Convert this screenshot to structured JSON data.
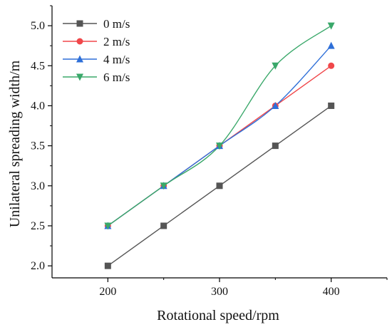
{
  "chart_data": {
    "type": "line",
    "title": "",
    "xlabel": "Rotational speed/rpm",
    "ylabel": "Unilateral spreading width/m",
    "x": [
      200,
      250,
      300,
      350,
      400
    ],
    "xlim": [
      150,
      450
    ],
    "ylim": [
      1.85,
      5.25
    ],
    "xticks": [
      "200",
      "300",
      "400"
    ],
    "xtick_values": [
      200,
      300,
      400
    ],
    "yticks": [
      "2.0",
      "2.5",
      "3.0",
      "3.5",
      "4.0",
      "4.5",
      "5.0"
    ],
    "ytick_values": [
      2.0,
      2.5,
      3.0,
      3.5,
      4.0,
      4.5,
      5.0
    ],
    "grid": false,
    "legend_position": "top-left",
    "series": [
      {
        "name": "0 m/s",
        "values": [
          2.0,
          2.5,
          3.0,
          3.5,
          4.0
        ],
        "color": "#555555",
        "marker": "square",
        "smooth": false
      },
      {
        "name": "2 m/s",
        "values": [
          2.5,
          3.0,
          3.5,
          4.0,
          4.5
        ],
        "color": "#f0474a",
        "marker": "circle",
        "smooth": false
      },
      {
        "name": "4 m/s",
        "values": [
          2.5,
          3.0,
          3.5,
          4.0,
          4.75
        ],
        "color": "#2e6fd8",
        "marker": "triangle-up",
        "smooth": true
      },
      {
        "name": "6 m/s",
        "values": [
          2.5,
          3.0,
          3.5,
          4.5,
          5.0
        ],
        "color": "#3aa86a",
        "marker": "triangle-down",
        "smooth": true
      }
    ]
  }
}
